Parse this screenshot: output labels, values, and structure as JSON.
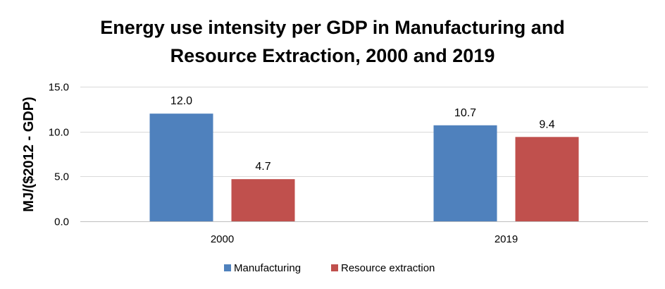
{
  "chart_data": {
    "type": "bar",
    "title_lines": [
      "Energy use intensity per GDP in Manufacturing and",
      "Resource Extraction, 2000 and 2019"
    ],
    "xlabel": "",
    "ylabel": "MJ/($2012 - GDP)",
    "categories": [
      "2000",
      "2019"
    ],
    "series": [
      {
        "name": "Manufacturing",
        "color": "#4f81bd",
        "values": [
          12.0,
          10.7
        ],
        "labels": [
          "12.0",
          "10.7"
        ]
      },
      {
        "name": "Resource extraction",
        "color": "#c0504d",
        "values": [
          4.7,
          9.4
        ],
        "labels": [
          "4.7",
          "9.4"
        ]
      }
    ],
    "ylim": [
      0,
      15
    ],
    "yticks": [
      0,
      5,
      10,
      15
    ],
    "ytick_labels": [
      "0.0",
      "5.0",
      "10.0",
      "15.0"
    ],
    "grid": true,
    "legend": "bottom"
  }
}
